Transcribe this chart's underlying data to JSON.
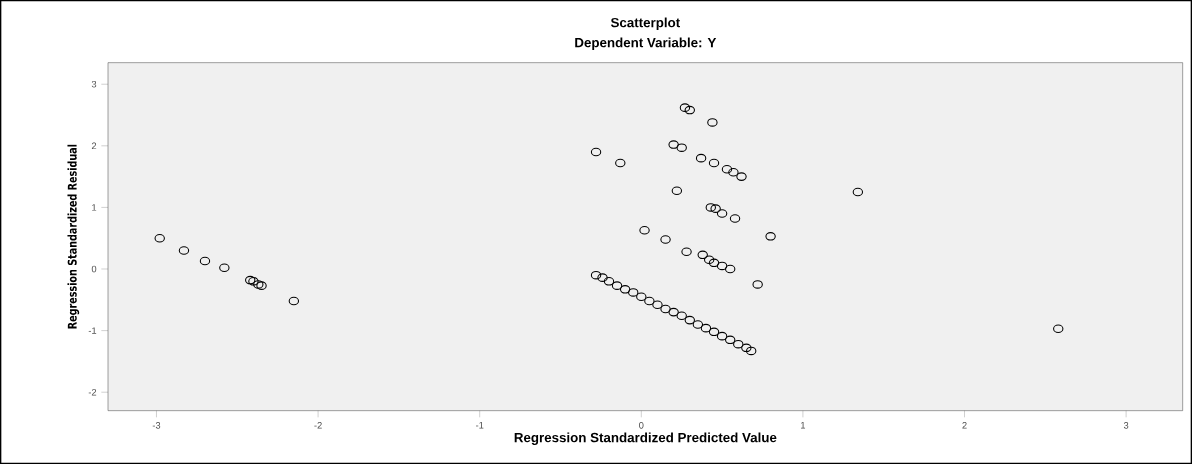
{
  "chart_data": {
    "type": "scatter",
    "title": "Scatterplot",
    "subtitle": "Dependent Variable: Y",
    "xlabel": "Regression Standardized Predicted Value",
    "ylabel": "Regression Standardized Residual",
    "marker": "circle",
    "xlim": [
      -3.3,
      3.35
    ],
    "ylim": [
      -2.3,
      3.35
    ],
    "xticks": [
      -3,
      -2,
      -1,
      0,
      1,
      2,
      3
    ],
    "yticks": [
      -2,
      -1,
      0,
      1,
      2,
      3
    ],
    "series": [
      {
        "color": "#000000",
        "x": [
          -2.98,
          -2.83,
          -2.7,
          -2.58,
          -2.42,
          -2.4,
          -2.37,
          -2.35,
          -2.15,
          -0.28,
          -0.13,
          0.27,
          0.3,
          0.44,
          0.2,
          0.25,
          0.37,
          0.45,
          0.53,
          0.57,
          0.62,
          0.22,
          0.43,
          0.46,
          0.5,
          0.58,
          1.34,
          0.02,
          0.15,
          0.8,
          0.28,
          0.38,
          0.42,
          0.45,
          0.5,
          0.55,
          0.72,
          2.58,
          -0.28,
          -0.24,
          -0.2,
          -0.15,
          -0.1,
          -0.05,
          0.0,
          0.05,
          0.1,
          0.15,
          0.2,
          0.25,
          0.3,
          0.35,
          0.4,
          0.45,
          0.5,
          0.55,
          0.6,
          0.65,
          0.68
        ],
        "values": [
          0.5,
          0.3,
          0.13,
          0.02,
          -0.18,
          -0.2,
          -0.25,
          -0.27,
          -0.52,
          1.9,
          1.72,
          2.62,
          2.58,
          2.38,
          2.02,
          1.97,
          1.8,
          1.72,
          1.62,
          1.57,
          1.5,
          1.27,
          1.0,
          0.98,
          0.9,
          0.82,
          1.25,
          0.63,
          0.48,
          0.53,
          0.28,
          0.23,
          0.15,
          0.1,
          0.05,
          0.0,
          -0.25,
          -0.97,
          -0.1,
          -0.14,
          -0.2,
          -0.27,
          -0.33,
          -0.38,
          -0.45,
          -0.52,
          -0.58,
          -0.65,
          -0.7,
          -0.76,
          -0.83,
          -0.9,
          -0.96,
          -1.02,
          -1.09,
          -1.15,
          -1.22,
          -1.28,
          -1.33
        ]
      }
    ]
  }
}
